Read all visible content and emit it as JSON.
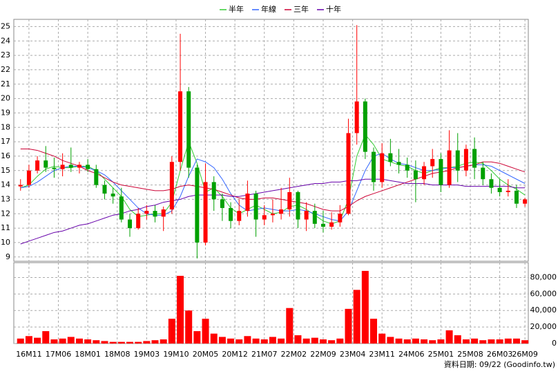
{
  "chart_data": [
    {
      "type": "candlestick",
      "x": [
        0,
        2,
        4,
        6,
        8,
        10,
        12,
        14,
        16,
        18,
        20,
        22,
        24,
        26,
        28,
        30,
        32,
        34,
        36,
        38,
        40,
        42,
        44,
        46,
        48,
        50,
        52,
        54,
        56,
        58,
        60,
        62,
        64,
        66,
        68,
        70,
        72,
        74,
        76,
        78,
        80,
        82,
        84,
        86,
        88,
        90,
        92,
        94,
        96,
        98,
        100,
        102,
        104,
        106,
        108,
        110,
        112,
        114,
        116,
        118,
        120
      ],
      "open": [
        13.9,
        14.0,
        15.0,
        15.7,
        15.2,
        15.1,
        15.4,
        15.2,
        15.4,
        15.1,
        14.0,
        13.4,
        13.2,
        11.6,
        11.0,
        12.0,
        12.2,
        11.8,
        12.3,
        15.6,
        20.5,
        15.2,
        10.0,
        14.2,
        13.0,
        12.4,
        11.5,
        12.2,
        13.4,
        11.6,
        11.9,
        12.0,
        12.3,
        13.5,
        11.6,
        12.2,
        11.3,
        11.1,
        11.4,
        12.0,
        17.6,
        19.8,
        16.3,
        14.2,
        16.2,
        15.6,
        15.4,
        15.0,
        14.4,
        15.3,
        15.8,
        14.0,
        16.4,
        15.0,
        16.5,
        15.2,
        14.4,
        13.8,
        13.5,
        13.6,
        12.7
      ],
      "high": [
        14.4,
        15.4,
        16.0,
        16.7,
        15.9,
        16.2,
        16.6,
        15.6,
        15.8,
        15.4,
        14.3,
        13.8,
        13.8,
        12.0,
        12.4,
        12.6,
        12.6,
        12.5,
        16.0,
        24.5,
        20.8,
        15.4,
        15.5,
        14.6,
        13.4,
        12.8,
        13.0,
        14.3,
        13.6,
        12.6,
        13.0,
        13.8,
        14.5,
        13.6,
        12.8,
        12.7,
        12.2,
        12.1,
        12.6,
        18.6,
        25.1,
        20.0,
        16.6,
        16.9,
        17.2,
        16.5,
        15.9,
        15.7,
        15.6,
        16.5,
        16.2,
        17.8,
        17.6,
        16.8,
        17.3,
        15.6,
        14.8,
        14.4,
        14.4,
        14.0,
        13.1
      ],
      "low": [
        13.6,
        13.8,
        14.8,
        14.9,
        14.5,
        14.6,
        14.9,
        14.8,
        14.9,
        13.8,
        13.0,
        12.7,
        11.4,
        10.4,
        10.9,
        11.6,
        11.4,
        10.8,
        12.0,
        15.0,
        14.5,
        8.9,
        9.8,
        12.2,
        11.5,
        11.0,
        11.2,
        11.8,
        10.4,
        11.2,
        11.4,
        11.6,
        11.8,
        11.0,
        10.8,
        11.0,
        10.7,
        10.9,
        11.1,
        11.9,
        16.8,
        15.8,
        13.6,
        13.8,
        15.3,
        14.8,
        14.5,
        12.8,
        14.0,
        14.5,
        13.5,
        13.8,
        14.2,
        14.6,
        14.4,
        14.0,
        13.4,
        13.2,
        13.2,
        12.4,
        12.5
      ],
      "close": [
        14.0,
        15.0,
        15.7,
        15.2,
        15.1,
        15.4,
        15.2,
        15.4,
        15.1,
        14.0,
        13.4,
        13.2,
        11.6,
        11.0,
        12.0,
        12.2,
        11.8,
        12.3,
        15.6,
        20.5,
        15.2,
        10.0,
        14.2,
        13.0,
        12.4,
        11.5,
        12.2,
        13.4,
        11.6,
        11.9,
        12.0,
        12.3,
        13.5,
        11.6,
        12.2,
        11.3,
        11.1,
        11.4,
        12.0,
        17.6,
        19.8,
        16.3,
        14.2,
        16.2,
        15.6,
        15.4,
        15.0,
        14.4,
        15.3,
        15.8,
        14.0,
        16.4,
        15.0,
        16.5,
        15.2,
        14.4,
        13.8,
        13.5,
        13.6,
        12.7,
        13.0
      ],
      "up_color": "#ff0000",
      "down_color": "#00a000",
      "series": [
        {
          "name": "半年",
          "color": "#33cc33",
          "values": [
            13.8,
            14.0,
            14.6,
            15.1,
            15.3,
            15.2,
            15.2,
            15.3,
            15.3,
            15.0,
            14.4,
            13.8,
            13.2,
            12.3,
            11.8,
            11.9,
            12.0,
            12.0,
            12.8,
            15.0,
            17.0,
            15.5,
            13.5,
            13.8,
            13.2,
            12.4,
            12.0,
            12.3,
            12.6,
            12.3,
            12.0,
            12.1,
            12.5,
            12.6,
            12.3,
            11.9,
            11.5,
            11.3,
            11.5,
            13.0,
            16.0,
            17.5,
            16.8,
            15.8,
            15.6,
            15.4,
            15.3,
            15.0,
            14.8,
            15.0,
            15.2,
            15.2,
            15.3,
            15.5,
            15.6,
            15.5,
            15.0,
            14.4,
            14.0,
            13.7,
            13.3
          ]
        },
        {
          "name": "年線",
          "color": "#3366ff",
          "values": [
            13.8,
            13.9,
            14.2,
            14.6,
            15.0,
            15.2,
            15.3,
            15.3,
            15.2,
            15.0,
            14.7,
            14.2,
            13.6,
            13.0,
            12.4,
            12.0,
            11.9,
            11.9,
            12.2,
            13.2,
            14.6,
            15.8,
            15.6,
            15.2,
            14.4,
            13.4,
            12.6,
            12.2,
            12.3,
            12.4,
            12.3,
            12.2,
            12.2,
            12.3,
            12.2,
            12.0,
            11.8,
            11.6,
            11.5,
            12.2,
            13.6,
            15.0,
            16.0,
            16.2,
            15.8,
            15.5,
            15.4,
            15.2,
            15.0,
            15.0,
            15.1,
            15.2,
            15.2,
            15.3,
            15.4,
            15.4,
            15.3,
            15.0,
            14.7,
            14.4,
            14.1
          ]
        },
        {
          "name": "三年",
          "color": "#cc0033",
          "values": [
            16.5,
            16.5,
            16.4,
            16.2,
            16.0,
            15.7,
            15.5,
            15.3,
            15.0,
            14.8,
            14.5,
            14.2,
            14.0,
            13.9,
            13.8,
            13.7,
            13.6,
            13.6,
            13.7,
            13.9,
            14.0,
            13.9,
            13.8,
            13.7,
            13.5,
            13.3,
            13.1,
            13.0,
            13.0,
            13.1,
            13.1,
            13.0,
            12.9,
            12.8,
            12.7,
            12.5,
            12.3,
            12.2,
            12.2,
            12.5,
            12.9,
            13.2,
            13.4,
            13.6,
            13.8,
            14.0,
            14.2,
            14.4,
            14.6,
            14.8,
            14.9,
            15.0,
            15.2,
            15.3,
            15.4,
            15.6,
            15.6,
            15.5,
            15.3,
            15.1,
            14.9
          ]
        },
        {
          "name": "十年",
          "color": "#6600aa",
          "values": [
            9.9,
            10.1,
            10.3,
            10.5,
            10.7,
            10.8,
            11.0,
            11.2,
            11.3,
            11.5,
            11.7,
            11.9,
            12.0,
            12.2,
            12.3,
            12.5,
            12.6,
            12.8,
            12.9,
            13.0,
            13.2,
            13.3,
            13.3,
            13.3,
            13.3,
            13.2,
            13.2,
            13.3,
            13.4,
            13.5,
            13.6,
            13.7,
            13.8,
            13.9,
            14.0,
            14.1,
            14.1,
            14.2,
            14.2,
            14.3,
            14.3,
            14.4,
            14.4,
            14.4,
            14.3,
            14.2,
            14.1,
            14.1,
            14.1,
            14.0,
            14.0,
            14.0,
            14.0,
            13.9,
            13.9,
            13.9,
            13.9,
            13.9,
            13.9,
            13.8,
            13.8
          ]
        }
      ],
      "xlim": [
        -1.6,
        120.8
      ],
      "ylim": [
        8.7,
        25.5
      ],
      "yticks": [
        9,
        10,
        11,
        12,
        13,
        14,
        15,
        16,
        17,
        18,
        19,
        20,
        21,
        22,
        23,
        24,
        25
      ],
      "xticks": [
        {
          "value": 2,
          "label": "16M11"
        },
        {
          "value": 9,
          "label": "17M06"
        },
        {
          "value": 16,
          "label": "18M01"
        },
        {
          "value": 23,
          "label": "18M08"
        },
        {
          "value": 30,
          "label": "19M03"
        },
        {
          "value": 37,
          "label": "19M10"
        },
        {
          "value": 44,
          "label": "20M05"
        },
        {
          "value": 51,
          "label": "20M12"
        },
        {
          "value": 58,
          "label": "21M07"
        },
        {
          "value": 65,
          "label": "22M02"
        },
        {
          "value": 72,
          "label": "22M09"
        },
        {
          "value": 79,
          "label": "23M04"
        },
        {
          "value": 86,
          "label": "23M11"
        },
        {
          "value": 93,
          "label": "24M06"
        },
        {
          "value": 100,
          "label": "25M01"
        },
        {
          "value": 107,
          "label": "25M08"
        },
        {
          "value": 114,
          "label": "26M03"
        },
        {
          "value": 120,
          "label": "26M09"
        }
      ],
      "grid": true
    },
    {
      "type": "bar",
      "color": "#ff0000",
      "values": [
        6000,
        9000,
        7000,
        15000,
        5000,
        6000,
        8000,
        6000,
        5000,
        4000,
        3000,
        2000,
        2000,
        2000,
        2000,
        3000,
        4000,
        5000,
        30000,
        82000,
        40000,
        15000,
        30000,
        12000,
        8000,
        6000,
        5000,
        9000,
        6000,
        5000,
        8000,
        6000,
        43000,
        10000,
        6000,
        7000,
        5000,
        4000,
        6000,
        42000,
        65000,
        88000,
        30000,
        12000,
        8000,
        6000,
        5000,
        6000,
        5000,
        4000,
        5000,
        16000,
        10000,
        5000,
        6000,
        4000,
        5000,
        5000,
        6000,
        6000,
        4000
      ],
      "ylim": [
        0,
        98000
      ],
      "yticks": [
        0,
        {
          "value": 20000,
          "label": "20,000"
        },
        {
          "value": 40000,
          "label": "40,000"
        },
        {
          "value": 60000,
          "label": "60,000"
        },
        {
          "value": 80000,
          "label": "80,000"
        }
      ],
      "grid": true
    }
  ],
  "footer": "資料日期: 09/22 (Goodinfo.tw)"
}
